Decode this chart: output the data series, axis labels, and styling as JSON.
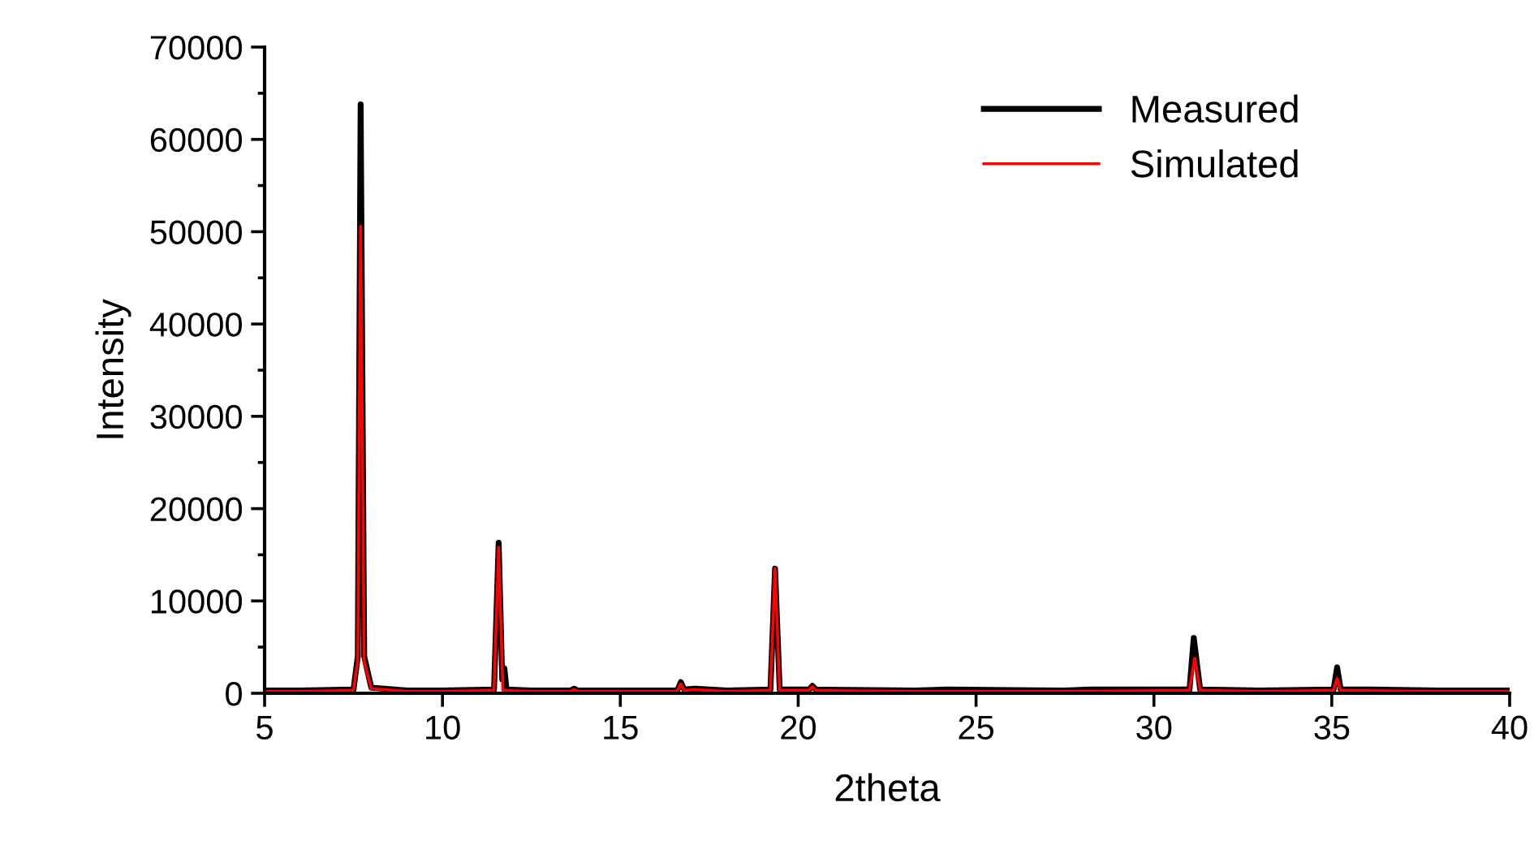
{
  "chart_data": {
    "type": "line",
    "xlabel": "2theta",
    "ylabel": "Intensity",
    "xlim": [
      5,
      40
    ],
    "ylim": [
      0,
      70000
    ],
    "xticks": [
      5,
      10,
      15,
      20,
      25,
      30,
      35,
      40
    ],
    "yticks": [
      0,
      10000,
      20000,
      30000,
      40000,
      50000,
      60000,
      70000
    ],
    "legend": "top right",
    "grid": false,
    "series": [
      {
        "name": "Measured",
        "color": "#000000",
        "x": [
          5,
          6,
          7.5,
          7.62,
          7.7,
          7.8,
          8.0,
          9,
          10,
          11.45,
          11.58,
          11.68,
          11.74,
          11.8,
          12.5,
          13.6,
          13.7,
          13.8,
          15.5,
          16.6,
          16.7,
          16.8,
          17.1,
          18,
          19.22,
          19.35,
          19.48,
          20.3,
          20.4,
          20.5,
          23.3,
          24.2,
          27.5,
          28.2,
          31.0,
          31.12,
          31.2,
          31.3,
          33,
          35.05,
          35.15,
          35.25,
          36.1,
          38,
          40
        ],
        "values": [
          300,
          300,
          400,
          4000,
          63800,
          4000,
          600,
          300,
          300,
          400,
          16300,
          1500,
          2700,
          400,
          300,
          300,
          500,
          300,
          300,
          300,
          1200,
          400,
          500,
          300,
          400,
          13500,
          400,
          400,
          800,
          400,
          300,
          400,
          300,
          400,
          400,
          6000,
          3500,
          400,
          300,
          400,
          2800,
          400,
          400,
          300,
          300
        ]
      },
      {
        "name": "Simulated",
        "color": "#ff0000",
        "x": [
          5,
          6,
          7.5,
          7.62,
          7.7,
          7.8,
          8.0,
          9,
          10,
          11.45,
          11.58,
          11.7,
          12.5,
          13.6,
          13.7,
          13.8,
          15.5,
          16.6,
          16.7,
          16.8,
          17.1,
          18,
          19.22,
          19.35,
          19.48,
          20.3,
          20.4,
          20.5,
          23.3,
          27.5,
          31.0,
          31.15,
          31.3,
          33,
          35.05,
          35.15,
          35.25,
          38,
          40
        ],
        "values": [
          200,
          200,
          300,
          3500,
          50600,
          3500,
          500,
          200,
          200,
          300,
          15800,
          300,
          200,
          200,
          400,
          200,
          200,
          200,
          1000,
          300,
          400,
          200,
          300,
          13500,
          300,
          300,
          700,
          300,
          200,
          200,
          300,
          3800,
          300,
          200,
          300,
          1600,
          300,
          200,
          200
        ]
      }
    ]
  }
}
